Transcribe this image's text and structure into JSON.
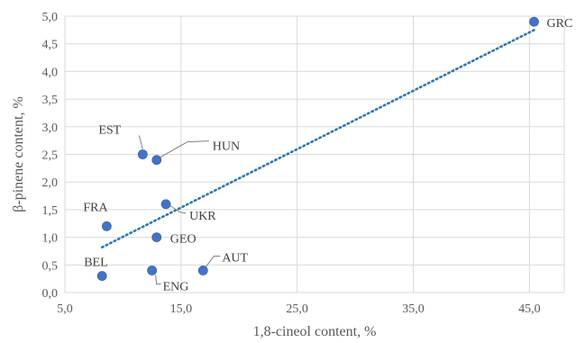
{
  "chart_data": {
    "type": "scatter",
    "xlabel": "1,8-cineol content, %",
    "ylabel": "β-pinene content, %",
    "xlim": [
      5,
      48
    ],
    "ylim": [
      0,
      5
    ],
    "x_ticks": [
      5,
      15,
      25,
      35,
      45
    ],
    "x_tick_labels": [
      "5,0",
      "15,0",
      "25,0",
      "35,0",
      "45,0"
    ],
    "y_ticks": [
      0,
      0.5,
      1,
      1.5,
      2,
      2.5,
      3,
      3.5,
      4,
      4.5,
      5
    ],
    "y_tick_labels": [
      "0,0",
      "0,5",
      "1,0",
      "1,5",
      "2,0",
      "2,5",
      "3,0",
      "3,5",
      "4,0",
      "4,5",
      "5,0"
    ],
    "grid": true,
    "points": [
      {
        "label": "GRC",
        "x": 45.4,
        "y": 4.9
      },
      {
        "label": "EST",
        "x": 11.7,
        "y": 2.5
      },
      {
        "label": "HUN",
        "x": 12.9,
        "y": 2.4
      },
      {
        "label": "UKR",
        "x": 13.7,
        "y": 1.6
      },
      {
        "label": "FRA",
        "x": 8.6,
        "y": 1.2
      },
      {
        "label": "GEO",
        "x": 12.9,
        "y": 1.0
      },
      {
        "label": "BEL",
        "x": 8.2,
        "y": 0.3
      },
      {
        "label": "ENG",
        "x": 12.5,
        "y": 0.4
      },
      {
        "label": "AUT",
        "x": 16.9,
        "y": 0.4
      }
    ],
    "trendline": {
      "style": "dotted",
      "x": [
        8.2,
        45.4
      ],
      "y": [
        0.82,
        4.75
      ]
    },
    "colors": {
      "marker": "#4472c4",
      "trendline": "#2e75b6",
      "grid": "#d9d9d9",
      "leader": "#7f7f7f"
    }
  }
}
